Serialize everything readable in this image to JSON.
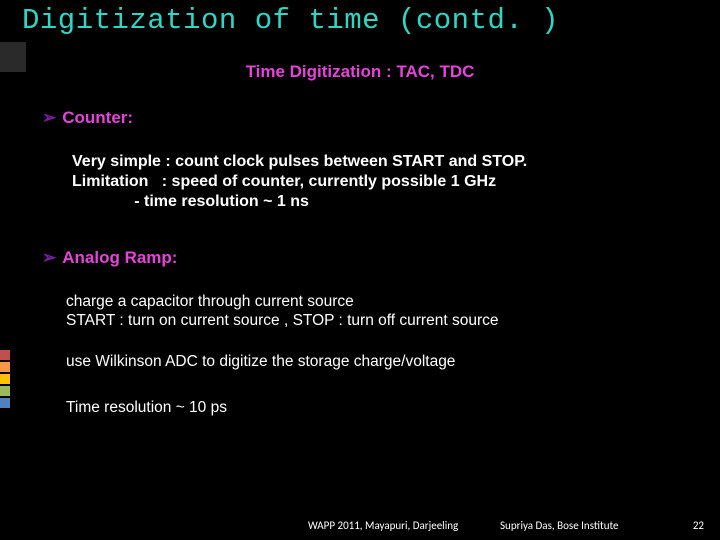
{
  "colors": {
    "background": "#000000",
    "title": "#2fd6c4",
    "subtitle": "#e444d8",
    "bullet_arrow": "#7b1fa2",
    "bullet_text_counter": "#e444d8",
    "bullet_text_analog": "#e444d8",
    "body_text": "#ffffff",
    "footer_text": "#ffffff",
    "stripe1": "#c0504d",
    "stripe2": "#f79646",
    "stripe3": "#ffc000",
    "stripe4": "#9bbb59",
    "stripe5": "#4f81bd"
  },
  "title": "Digitization of time (contd. )",
  "subtitle": "Time Digitization : TAC, TDC",
  "bullets": {
    "counter": {
      "label": "Counter:",
      "body": "Very simple : count clock pulses between START and STOP.\nLimitation   : speed of counter, currently possible 1 GHz\n              - time resolution ~ 1 ns"
    },
    "analog": {
      "label": "Analog Ramp:",
      "body1": "charge a capacitor through current source\nSTART : turn on current source , STOP : turn off current source",
      "body2": "use Wilkinson ADC to digitize the storage charge/voltage",
      "body3": "Time resolution ~ 10 ps"
    }
  },
  "footer": {
    "venue": "WAPP 2011, Mayapuri, Darjeeling",
    "author": "Supriya Das, Bose Institute",
    "page": "22"
  }
}
